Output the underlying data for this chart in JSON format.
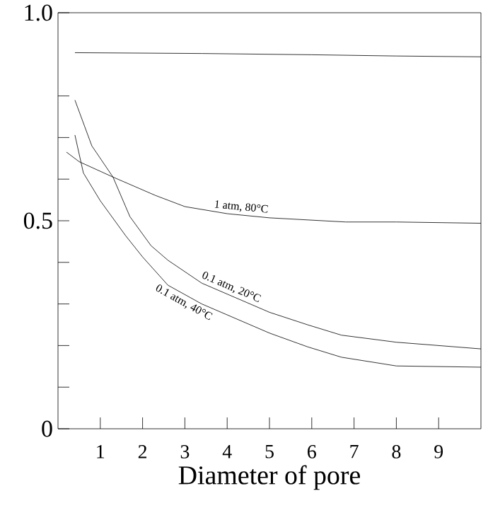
{
  "chart_data": {
    "type": "line",
    "xlabel": "Diameter of pore",
    "xlim": [
      0,
      10
    ],
    "ylim": [
      0,
      1.0
    ],
    "xticks": [
      1,
      2,
      3,
      4,
      5,
      6,
      7,
      8,
      9
    ],
    "yticks": [
      0,
      {
        "value": 0.1,
        "label": null
      },
      {
        "value": 0.2,
        "label": null
      },
      {
        "value": 0.3,
        "label": null
      },
      {
        "value": 0.4,
        "label": null
      },
      {
        "value": 0.5,
        "label": "0.5"
      },
      {
        "value": 0.6,
        "label": null
      },
      {
        "value": 0.7,
        "label": null
      },
      {
        "value": 0.8,
        "label": null
      },
      {
        "value": 1.0,
        "label": "1.0"
      }
    ],
    "series": [
      {
        "color": "#000000",
        "x": [
          0.4,
          3.4,
          6.0,
          8.0,
          10.0
        ],
        "values": [
          0.904,
          0.902,
          0.899,
          0.896,
          0.894
        ]
      },
      {
        "name": "1 atm, 80°C",
        "color": "#000000",
        "x": [
          0.2,
          0.5,
          1.3,
          2.3,
          3.0,
          4.0,
          5.0,
          6.8,
          8.0,
          10.0
        ],
        "values": [
          0.665,
          0.642,
          0.605,
          0.561,
          0.534,
          0.517,
          0.507,
          0.497,
          0.497,
          0.494
        ]
      },
      {
        "name": "0.1 atm, 20°C",
        "color": "#000000",
        "x": [
          0.4,
          0.8,
          1.3,
          1.7,
          2.2,
          2.6,
          3.4,
          4.2,
          5.0,
          5.9,
          6.7,
          8.0,
          10.0
        ],
        "values": [
          0.79,
          0.68,
          0.605,
          0.51,
          0.44,
          0.405,
          0.35,
          0.315,
          0.28,
          0.25,
          0.225,
          0.208,
          0.192
        ]
      },
      {
        "name": "0.1 atm, 40°C",
        "color": "#000000",
        "x": [
          0.4,
          0.6,
          1.0,
          1.6,
          2.0,
          2.6,
          3.4,
          4.2,
          5.0,
          5.9,
          6.7,
          8.0,
          10.0
        ],
        "values": [
          0.706,
          0.615,
          0.548,
          0.464,
          0.413,
          0.345,
          0.3,
          0.265,
          0.23,
          0.197,
          0.172,
          0.151,
          0.148
        ]
      }
    ],
    "marker": "none",
    "line_style": "solid",
    "grid": false
  }
}
